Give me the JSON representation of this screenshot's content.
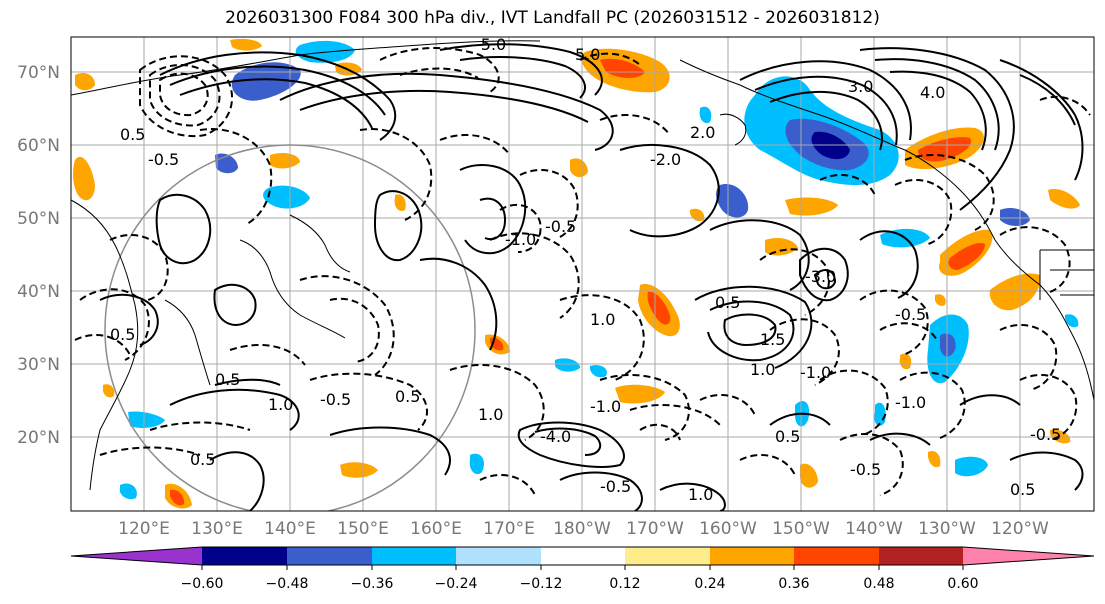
{
  "title": "2026031300 F084 300 hPa div., IVT Landfall PC (2026031512 - 2026031812)",
  "lat_labels": [
    "70°N",
    "60°N",
    "50°N",
    "40°N",
    "30°N",
    "20°N"
  ],
  "lon_labels": [
    "120°E",
    "130°E",
    "140°E",
    "150°E",
    "160°E",
    "170°E",
    "180°W",
    "170°W",
    "160°W",
    "150°W",
    "140°W",
    "130°W",
    "120°W"
  ],
  "contour_labels": [
    {
      "t": "0.5"
    },
    {
      "t": "-0.5"
    },
    {
      "t": "1.0"
    },
    {
      "t": "-1.0"
    },
    {
      "t": "1.5"
    },
    {
      "t": "-2.0"
    },
    {
      "t": "2.0"
    },
    {
      "t": "3.0"
    },
    {
      "t": "-3.0"
    },
    {
      "t": "4.0"
    },
    {
      "t": "-4.0"
    },
    {
      "t": "5.0"
    },
    {
      "t": "-5.0"
    },
    {
      "t": "0.5"
    },
    {
      "t": "-0.5"
    },
    {
      "t": "1.0"
    },
    {
      "t": "-1.0"
    },
    {
      "t": "0.5"
    },
    {
      "t": "-0.5"
    },
    {
      "t": "0.5"
    },
    {
      "t": "1.0"
    },
    {
      "t": "-0.5"
    },
    {
      "t": "0.5"
    },
    {
      "t": "-0.5"
    },
    {
      "t": "1.0"
    },
    {
      "t": "-1.0"
    },
    {
      "t": "0.5"
    },
    {
      "t": "-0.5"
    },
    {
      "t": "0.5"
    },
    {
      "t": "-1.0"
    },
    {
      "t": "1.0"
    },
    {
      "t": "-0.5"
    },
    {
      "t": "0.5"
    }
  ],
  "colorbar": {
    "ticks": [
      "−0.60",
      "−0.48",
      "−0.36",
      "−0.24",
      "−0.12",
      "0.12",
      "0.24",
      "0.36",
      "0.48",
      "0.60"
    ],
    "colors": [
      "#9a32cd",
      "#00008b",
      "#3a5fcd",
      "#00bfff",
      "#b0e2ff",
      "#ffffff",
      "#ffec8b",
      "#ffa500",
      "#ff4500",
      "#b22222",
      "#ff82ab"
    ]
  }
}
